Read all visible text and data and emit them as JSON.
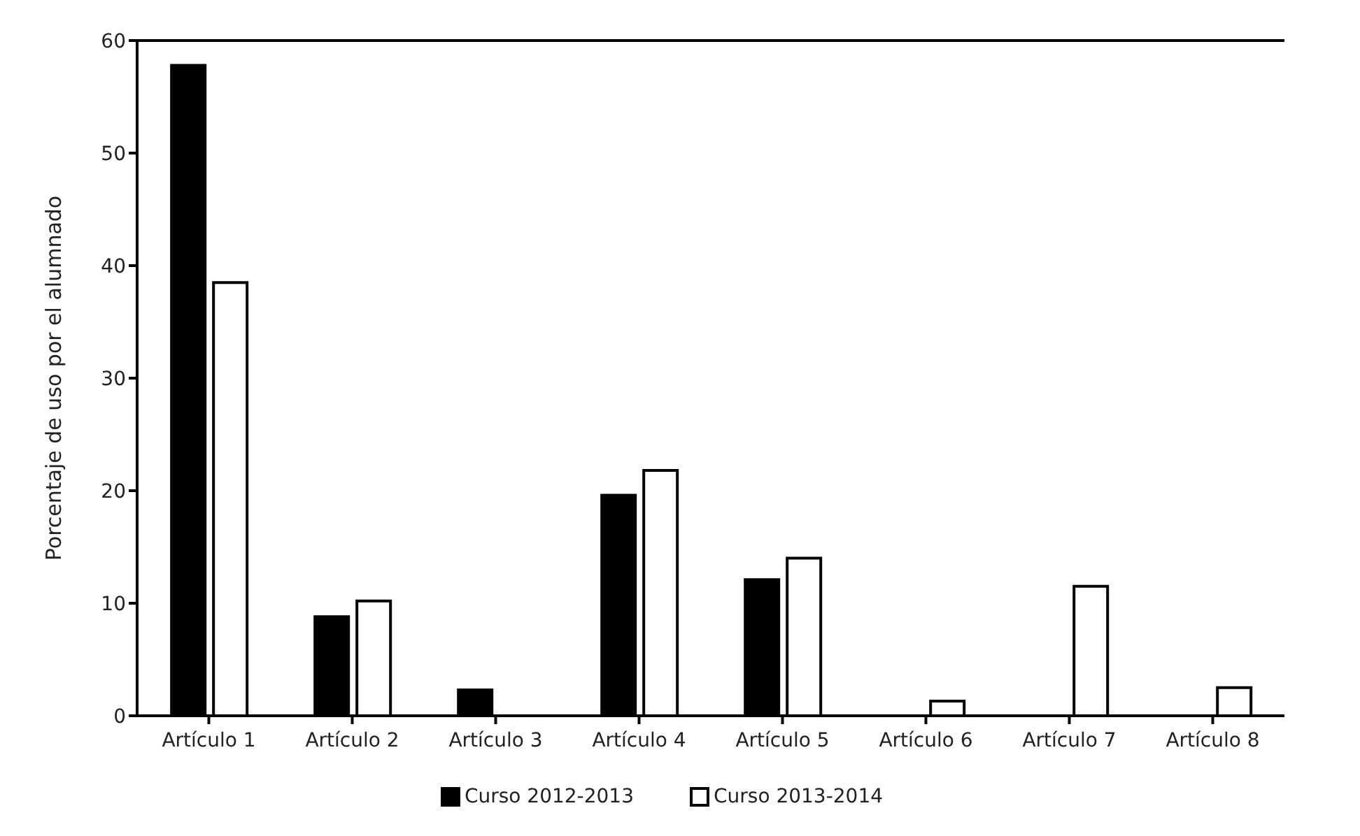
{
  "chart_data": {
    "type": "bar",
    "ylabel": "Porcentaje de uso por el alumnado",
    "categories": [
      "Artículo 1",
      "Artículo 2",
      "Artículo 3",
      "Artículo 4",
      "Artículo 5",
      "Artículo 6",
      "Artículo 7",
      "Artículo 8"
    ],
    "series": [
      {
        "name": "Curso 2012-2013",
        "color": "#000000",
        "values": [
          57.8,
          8.8,
          2.3,
          19.6,
          12.1,
          0,
          0,
          0
        ]
      },
      {
        "name": "Curso 2013-2014",
        "color": "#ffffff",
        "values": [
          38.5,
          10.2,
          0,
          21.8,
          14.0,
          1.3,
          11.5,
          2.5
        ]
      }
    ],
    "ylim": [
      0,
      60
    ],
    "yticks": [
      0,
      10,
      20,
      30,
      40,
      50,
      60
    ],
    "grid": false,
    "legend": "bottom"
  }
}
